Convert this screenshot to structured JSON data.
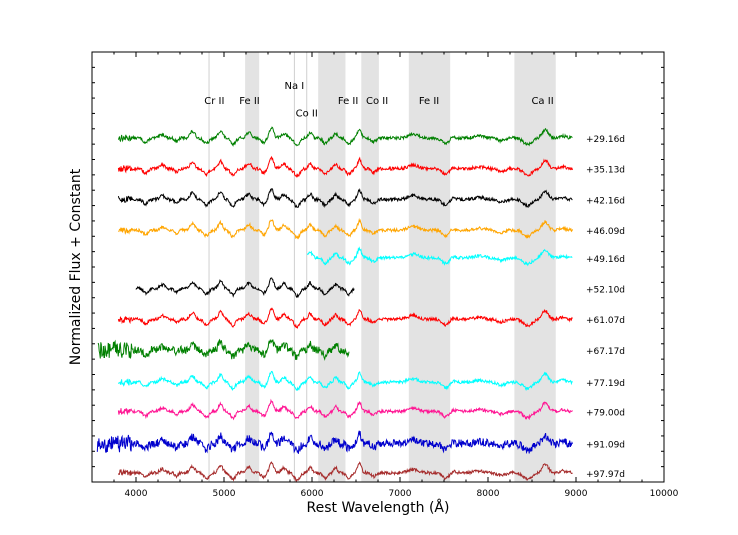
{
  "chart_data": {
    "type": "line",
    "title": "",
    "xlabel": "Rest Wavelength (Å)",
    "ylabel": "Normalized Flux + Constant",
    "xlim": [
      3500,
      10000
    ],
    "ylim": [
      0,
      14
    ],
    "xticks": [
      4000,
      5000,
      6000,
      7000,
      8000,
      9000,
      10000
    ],
    "grid": false,
    "shaded_bands": [
      {
        "label": "Fe II",
        "range": [
          5240,
          5400
        ]
      },
      {
        "label": "Co II",
        "range": [
          6070,
          6380
        ]
      },
      {
        "label": "Co II",
        "range": [
          6560,
          6760
        ]
      },
      {
        "label": "Fe II",
        "range": [
          7100,
          7570
        ]
      },
      {
        "label": "Ca II",
        "range": [
          8300,
          8770
        ]
      }
    ],
    "line_markers": [
      {
        "label": "Cr II",
        "x": 4830
      },
      {
        "label": "Na I",
        "x": 5800
      },
      {
        "label": "Co II",
        "x": 5940
      }
    ],
    "annotations": [
      {
        "text": "Cr II",
        "x": 4890,
        "level": 12.3
      },
      {
        "text": "Fe II",
        "x": 5290,
        "level": 12.3
      },
      {
        "text": "Na I",
        "x": 5800,
        "level": 12.8
      },
      {
        "text": "Co II",
        "x": 5940,
        "level": 11.9
      },
      {
        "text": "Fe II",
        "x": 6410,
        "level": 12.3
      },
      {
        "text": "Co II",
        "x": 6740,
        "level": 12.3
      },
      {
        "text": "Fe II",
        "x": 7330,
        "level": 12.3
      },
      {
        "text": "Ca II",
        "x": 8620,
        "level": 12.3
      }
    ],
    "series": [
      {
        "name": "+29.16d",
        "color": "#008000",
        "x_start": 3800,
        "x_end": 8960,
        "offset": 11.2
      },
      {
        "name": "+35.13d",
        "color": "#ff0000",
        "x_start": 3800,
        "x_end": 8960,
        "offset": 10.2
      },
      {
        "name": "+42.16d",
        "color": "#000000",
        "x_start": 3800,
        "x_end": 8960,
        "offset": 9.2
      },
      {
        "name": "+46.09d",
        "color": "#ffa500",
        "x_start": 3800,
        "x_end": 8960,
        "offset": 8.2
      },
      {
        "name": "+49.16d",
        "color": "#00ffff",
        "x_start": 5950,
        "x_end": 8960,
        "offset": 7.3
      },
      {
        "name": "+52.10d",
        "color": "#000000",
        "x_start": 4000,
        "x_end": 6480,
        "offset": 6.3
      },
      {
        "name": "+61.07d",
        "color": "#ff0000",
        "x_start": 3800,
        "x_end": 8960,
        "offset": 5.3
      },
      {
        "name": "+67.17d",
        "color": "#008000",
        "x_start": 3570,
        "x_end": 6420,
        "offset": 4.3
      },
      {
        "name": "+77.19d",
        "color": "#00ffff",
        "x_start": 3800,
        "x_end": 8960,
        "offset": 3.25
      },
      {
        "name": "+79.00d",
        "color": "#ff1493",
        "x_start": 3800,
        "x_end": 8960,
        "offset": 2.3
      },
      {
        "name": "+91.09d",
        "color": "#0000cd",
        "x_start": 3560,
        "x_end": 8960,
        "offset": 1.25
      },
      {
        "name": "+97.97d",
        "color": "#a52a2a",
        "x_start": 3800,
        "x_end": 8960,
        "offset": 0.3
      }
    ]
  }
}
